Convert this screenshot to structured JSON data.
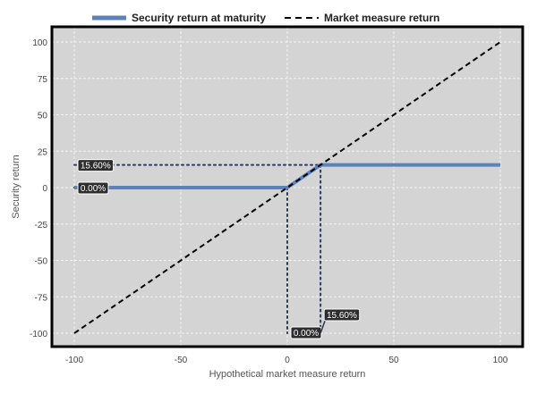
{
  "chart_data": {
    "type": "line",
    "xlabel": "Hypothetical market measure return",
    "ylabel": "Security return",
    "xlim": [
      -110,
      110
    ],
    "ylim": [
      -110,
      110
    ],
    "x_ticks": [
      -100,
      -50,
      0,
      50,
      100
    ],
    "y_ticks": [
      100,
      75,
      50,
      25,
      0,
      -25,
      -50,
      -75,
      -100
    ],
    "grid": true,
    "legend_placement": "top-center",
    "series": [
      {
        "name": "Security return at maturity",
        "style": "solid",
        "color": "#5b82bb",
        "x": [
          -100,
          0,
          15.6,
          100
        ],
        "y": [
          0,
          0,
          15.6,
          15.6
        ]
      },
      {
        "name": "Market measure return",
        "style": "dashed",
        "color": "#000000",
        "x": [
          -100,
          100
        ],
        "y": [
          -100,
          100
        ]
      }
    ],
    "reference_lines": [
      {
        "orientation": "horizontal",
        "y": 15.6,
        "x_from": -100,
        "x_to": 15.6
      },
      {
        "orientation": "horizontal",
        "y": 0,
        "x_from": -100,
        "x_to": 0
      },
      {
        "orientation": "vertical",
        "x": 0,
        "y_from": 0,
        "y_to": -100
      },
      {
        "orientation": "vertical",
        "x": 15.6,
        "y_from": 15.6,
        "y_to": -100
      }
    ],
    "annotations": [
      {
        "text": "15.60%",
        "axis": "y",
        "value": 15.6
      },
      {
        "text": "0.00%",
        "axis": "y",
        "value": 0
      },
      {
        "text": "0.00%",
        "axis": "x",
        "value": 0
      },
      {
        "text": "15.60%",
        "axis": "x",
        "value": 15.6
      }
    ],
    "colors": {
      "plot_background": "#d4d4d4",
      "grid": "#f2f2f2",
      "reference_line": "#2b3a5a",
      "callout_background": "#2d2d2d"
    }
  }
}
